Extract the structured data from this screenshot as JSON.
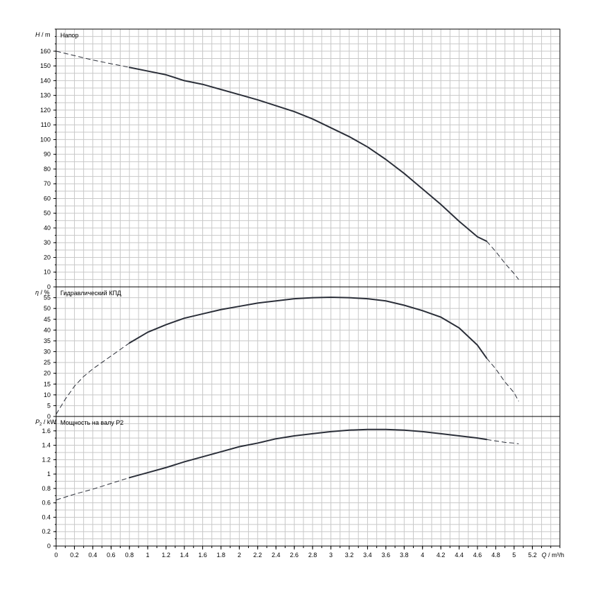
{
  "chart_data": {
    "type": "line",
    "x_axis": {
      "label_symbol": "Q",
      "label_unit": "m³/h",
      "range": [
        0,
        5.4
      ],
      "ticks": [
        "0",
        "0.2",
        "0.4",
        "0.6",
        "0.8",
        "1",
        "1.2",
        "1.4",
        "1.6",
        "1.8",
        "2",
        "2.2",
        "2.4",
        "2.6",
        "2.8",
        "3",
        "3.2",
        "3.4",
        "3.6",
        "3.8",
        "4",
        "4.2",
        "4.4",
        "4.6",
        "4.8",
        "5",
        "5.2"
      ],
      "grid_step": 0.1,
      "grid_max": 5.5
    },
    "panels": [
      {
        "key": "head",
        "title": "Напор",
        "y_symbol": "H",
        "y_sub": "",
        "y_unit": "m",
        "ylim": [
          0,
          175
        ],
        "y_ticks": [
          "0",
          "10",
          "20",
          "30",
          "40",
          "50",
          "60",
          "70",
          "80",
          "90",
          "100",
          "110",
          "120",
          "130",
          "140",
          "150",
          "160"
        ],
        "grid_step": 5,
        "series": [
          {
            "x": [
              0,
              0.2,
              0.4,
              0.6,
              0.8
            ],
            "y": [
              160,
              157,
              154,
              151.5,
              149
            ],
            "style": "dashed"
          },
          {
            "x": [
              0.8,
              1.0,
              1.2,
              1.4,
              1.6,
              1.8,
              2.0,
              2.2,
              2.4,
              2.6,
              2.8,
              3.0,
              3.2,
              3.4,
              3.6,
              3.8,
              4.0,
              4.2,
              4.4,
              4.6,
              4.7
            ],
            "y": [
              149,
              146.5,
              144,
              140,
              137.5,
              134,
              130.5,
              127,
              123,
              119,
              114,
              108,
              102,
              95,
              86.5,
              77,
              66.5,
              56,
              44.5,
              34,
              31
            ],
            "style": "solid"
          },
          {
            "x": [
              4.7,
              4.8,
              4.9,
              5.0,
              5.05
            ],
            "y": [
              31,
              24,
              16,
              9,
              5
            ],
            "style": "dashed"
          }
        ]
      },
      {
        "key": "efficiency",
        "title": "Гидравлический КПД",
        "y_symbol": "η",
        "y_sub": "",
        "y_unit": "%",
        "ylim": [
          0,
          60
        ],
        "y_ticks": [
          "0",
          "5",
          "10",
          "15",
          "20",
          "25",
          "30",
          "35",
          "40",
          "45",
          "50",
          "55"
        ],
        "grid_step": 5,
        "series": [
          {
            "x": [
              0,
              0.1,
              0.2,
              0.3,
              0.4,
              0.5,
              0.6,
              0.7,
              0.8
            ],
            "y": [
              1,
              8,
              14,
              18.5,
              22,
              25,
              28,
              31,
              34
            ],
            "style": "dashed"
          },
          {
            "x": [
              0.8,
              1.0,
              1.2,
              1.4,
              1.6,
              1.8,
              2.0,
              2.2,
              2.4,
              2.6,
              2.8,
              3.0,
              3.2,
              3.4,
              3.6,
              3.8,
              4.0,
              4.2,
              4.4,
              4.6,
              4.7
            ],
            "y": [
              34,
              39,
              42.5,
              45.5,
              47.5,
              49.5,
              51,
              52.5,
              53.5,
              54.5,
              55,
              55.2,
              55,
              54.5,
              53.5,
              51.5,
              49,
              46,
              41,
              33,
              27
            ],
            "style": "solid"
          },
          {
            "x": [
              4.7,
              4.8,
              4.9,
              5.0,
              5.05
            ],
            "y": [
              27,
              22,
              16,
              11,
              7
            ],
            "style": "dashed"
          }
        ]
      },
      {
        "key": "power",
        "title": "Мощность на валу P2",
        "y_symbol": "P",
        "y_sub": "2",
        "y_unit": "kW",
        "ylim": [
          0,
          1.8
        ],
        "y_ticks": [
          "0",
          "0.2",
          "0.4",
          "0.6",
          "0.8",
          "1",
          "1.2",
          "1.4",
          "1.6"
        ],
        "grid_step": 0.1,
        "series": [
          {
            "x": [
              0,
              0.2,
              0.4,
              0.6,
              0.8
            ],
            "y": [
              0.64,
              0.72,
              0.79,
              0.87,
              0.95
            ],
            "style": "dashed"
          },
          {
            "x": [
              0.8,
              1.0,
              1.2,
              1.4,
              1.6,
              1.8,
              2.0,
              2.2,
              2.4,
              2.6,
              2.8,
              3.0,
              3.2,
              3.4,
              3.6,
              3.8,
              4.0,
              4.2,
              4.4,
              4.6,
              4.7
            ],
            "y": [
              0.95,
              1.02,
              1.09,
              1.17,
              1.24,
              1.31,
              1.38,
              1.43,
              1.49,
              1.53,
              1.56,
              1.59,
              1.61,
              1.62,
              1.62,
              1.61,
              1.59,
              1.56,
              1.53,
              1.5,
              1.48
            ],
            "style": "solid"
          },
          {
            "x": [
              4.7,
              4.8,
              4.9,
              5.0,
              5.05
            ],
            "y": [
              1.48,
              1.46,
              1.44,
              1.43,
              1.42
            ],
            "style": "dashed"
          }
        ]
      }
    ]
  }
}
